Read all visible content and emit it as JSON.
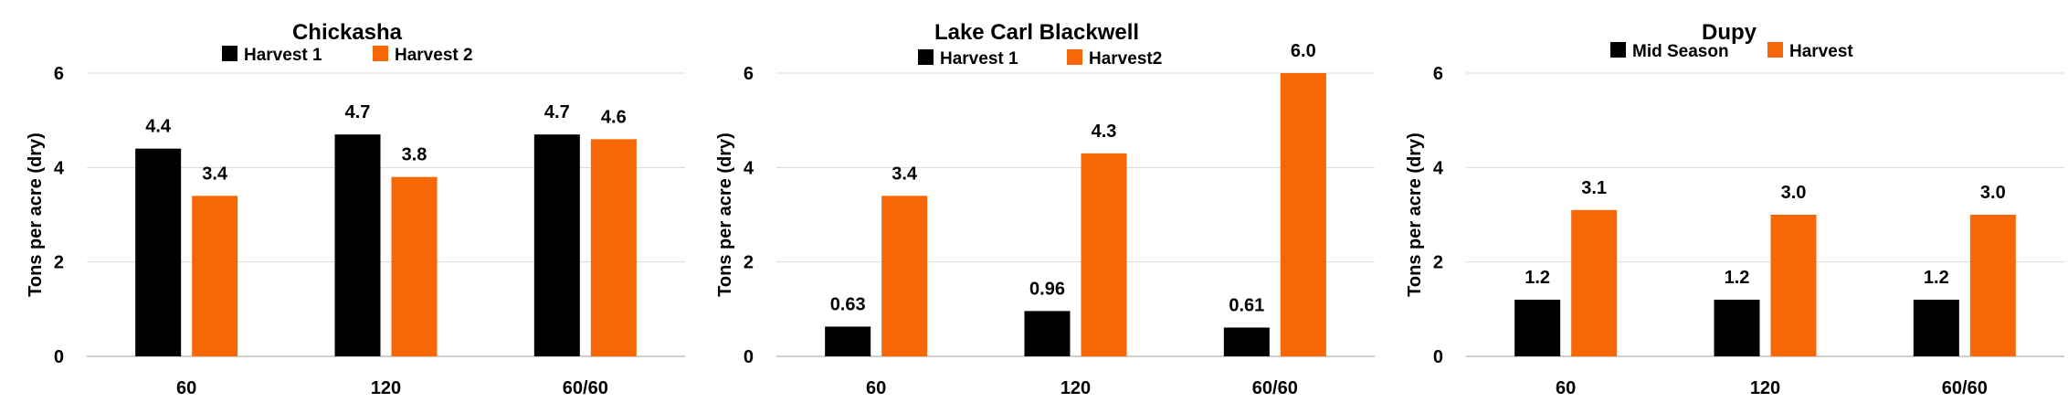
{
  "chart_data": [
    {
      "type": "bar",
      "title": "Chickasha",
      "ylabel": "Tons per acre (dry)",
      "xlabel": "",
      "ylim": [
        0,
        6
      ],
      "yticks": [
        0,
        2,
        4,
        6
      ],
      "grid": true,
      "legend_position": "top",
      "categories": [
        "60",
        "120",
        "60/60"
      ],
      "series": [
        {
          "name": "Harvest 1",
          "color": "#000000",
          "values": [
            4.4,
            4.7,
            4.7
          ],
          "labels": [
            "4.4",
            "4.7",
            "4.7"
          ]
        },
        {
          "name": "Harvest 2",
          "color": "#f86706",
          "values": [
            3.4,
            3.8,
            4.6
          ],
          "labels": [
            "3.4",
            "3.8",
            "4.6"
          ]
        }
      ]
    },
    {
      "type": "bar",
      "title": "Lake Carl Blackwell",
      "ylabel": "Tons per acre (dry)",
      "xlabel": "",
      "ylim": [
        0,
        6
      ],
      "yticks": [
        0,
        2,
        4,
        6
      ],
      "grid": true,
      "legend_position": "top",
      "categories": [
        "60",
        "120",
        "60/60"
      ],
      "series": [
        {
          "name": "Harvest 1",
          "color": "#000000",
          "values": [
            0.63,
            0.96,
            0.61
          ],
          "labels": [
            "0.63",
            "0.96",
            "0.61"
          ]
        },
        {
          "name": "Harvest2",
          "color": "#f86706",
          "values": [
            3.4,
            4.3,
            6.0
          ],
          "labels": [
            "3.4",
            "4.3",
            "6.0"
          ]
        }
      ]
    },
    {
      "type": "bar",
      "title": "Dupy",
      "ylabel": "Tons per acre (dry)",
      "xlabel": "",
      "ylim": [
        0,
        6
      ],
      "yticks": [
        0,
        2,
        4,
        6
      ],
      "grid": true,
      "legend_position": "top",
      "categories": [
        "60",
        "120",
        "60/60"
      ],
      "series": [
        {
          "name": "Mid Season",
          "color": "#000000",
          "values": [
            1.2,
            1.2,
            1.2
          ],
          "labels": [
            "1.2",
            "1.2",
            "1.2"
          ]
        },
        {
          "name": "Harvest",
          "color": "#f86706",
          "values": [
            3.1,
            3.0,
            3.0
          ],
          "labels": [
            "3.1",
            "3.0",
            "3.0"
          ]
        }
      ]
    }
  ]
}
